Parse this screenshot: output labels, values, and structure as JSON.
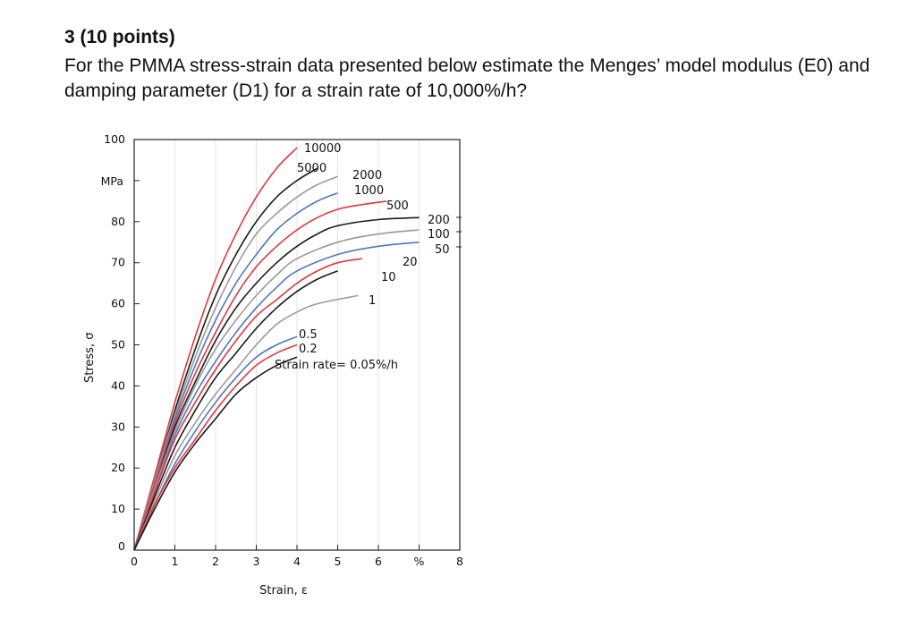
{
  "question": {
    "number": "3 (10 points)",
    "text": "For the PMMA stress-strain data presented below estimate the Menges’ model modulus (E0) and damping parameter (D1) for a strain rate of 10,000%/h?"
  },
  "chart_data": {
    "type": "line",
    "xlabel": "Strain, ε",
    "ylabel": "Stress, σ",
    "y_unit": "MPa",
    "x_unit_tick": "%",
    "xlim": [
      0,
      8
    ],
    "ylim": [
      0,
      100
    ],
    "x_ticks": [
      "0",
      "1",
      "2",
      "3",
      "4",
      "5",
      "6",
      "%",
      "8"
    ],
    "y_ticks": [
      "0",
      "10",
      "20",
      "30",
      "40",
      "50",
      "60",
      "70",
      "80",
      "100"
    ],
    "rate_prefix": "Strain rate= 0.05%/h",
    "colors": {
      "red": "#e0383c",
      "black": "#1a1a1a",
      "gray": "#9a9a9a",
      "blue": "#4a78c0"
    },
    "series": [
      {
        "name": "10000",
        "color": "red",
        "x": [
          0,
          0.5,
          1.0,
          1.5,
          2.0,
          2.5,
          3.0,
          3.5,
          4.0
        ],
        "y": [
          0,
          18,
          36,
          52,
          66,
          77,
          86,
          93,
          98
        ]
      },
      {
        "name": "5000",
        "color": "black",
        "x": [
          0,
          0.5,
          1.0,
          1.5,
          2.0,
          2.5,
          3.0,
          3.5,
          4.0,
          4.5
        ],
        "y": [
          0,
          17,
          34,
          49,
          62,
          72,
          80,
          86,
          90,
          93
        ]
      },
      {
        "name": "2000",
        "color": "gray",
        "x": [
          0,
          0.5,
          1.0,
          1.5,
          2.0,
          2.5,
          3.0,
          3.5,
          4.0,
          4.5,
          5.0
        ],
        "y": [
          0,
          17,
          33,
          47,
          59,
          69,
          77,
          82,
          86,
          89,
          91
        ]
      },
      {
        "name": "1000",
        "color": "blue",
        "x": [
          0,
          0.5,
          1.0,
          1.5,
          2.0,
          2.5,
          3.0,
          3.5,
          4.0,
          4.5,
          5.0
        ],
        "y": [
          0,
          16,
          32,
          45,
          56,
          65,
          72,
          78,
          82,
          85,
          87
        ]
      },
      {
        "name": "500",
        "color": "red",
        "x": [
          0,
          0.5,
          1.0,
          1.5,
          2.0,
          2.5,
          3.0,
          3.5,
          4.0,
          4.5,
          5.0,
          5.5,
          6.2
        ],
        "y": [
          0,
          16,
          31,
          43,
          53,
          62,
          69,
          74,
          78,
          81,
          83,
          84,
          85
        ]
      },
      {
        "name": "200",
        "color": "black",
        "x": [
          0,
          0.5,
          1.0,
          1.5,
          2.0,
          2.5,
          3.0,
          3.5,
          4.0,
          4.5,
          5.0,
          6.0,
          7.0
        ],
        "y": [
          0,
          15,
          30,
          41,
          51,
          59,
          65,
          70,
          74,
          77,
          79,
          80.5,
          81
        ]
      },
      {
        "name": "100",
        "color": "gray",
        "x": [
          0,
          0.5,
          1.0,
          1.5,
          2.0,
          2.5,
          3.0,
          3.5,
          4.0,
          5.0,
          6.0,
          7.0
        ],
        "y": [
          0,
          15,
          29,
          40,
          49,
          56,
          62,
          67,
          71,
          75,
          77,
          78
        ]
      },
      {
        "name": "50",
        "color": "blue",
        "x": [
          0,
          0.5,
          1.0,
          1.5,
          2.0,
          2.5,
          3.0,
          3.5,
          4.0,
          5.0,
          6.0,
          7.0
        ],
        "y": [
          0,
          14,
          28,
          38,
          46,
          53,
          59,
          64,
          68,
          72,
          74,
          75
        ]
      },
      {
        "name": "20",
        "color": "red",
        "x": [
          0,
          0.5,
          1.0,
          1.5,
          2.0,
          2.5,
          3.0,
          3.5,
          4.0,
          4.5,
          5.0,
          5.6
        ],
        "y": [
          0,
          14,
          27,
          36,
          44,
          51,
          57,
          61,
          65,
          68,
          70,
          71
        ]
      },
      {
        "name": "10",
        "color": "black",
        "x": [
          0,
          0.5,
          1.0,
          1.5,
          2.0,
          2.5,
          3.0,
          3.5,
          4.0,
          4.5,
          5.0
        ],
        "y": [
          0,
          13,
          25,
          34,
          42,
          48,
          54,
          59,
          63,
          66,
          68
        ]
      },
      {
        "name": "1",
        "color": "gray",
        "x": [
          0,
          0.5,
          1.0,
          1.5,
          2.0,
          2.5,
          3.0,
          3.5,
          4.0,
          4.5,
          5.5
        ],
        "y": [
          0,
          12,
          23,
          31,
          38,
          44,
          50,
          55,
          58,
          60,
          62
        ]
      },
      {
        "name": "0.5",
        "color": "blue",
        "x": [
          0,
          0.5,
          1.0,
          1.5,
          2.0,
          2.5,
          3.0,
          3.5,
          4.0
        ],
        "y": [
          0,
          11,
          21,
          29,
          36,
          42,
          47,
          50,
          52
        ]
      },
      {
        "name": "0.2",
        "color": "red",
        "x": [
          0,
          0.5,
          1.0,
          1.5,
          2.0,
          2.5,
          3.0,
          3.5,
          4.0
        ],
        "y": [
          0,
          11,
          20,
          27,
          34,
          40,
          45,
          48,
          50
        ]
      },
      {
        "name": "0.05",
        "color": "black",
        "x": [
          0,
          0.5,
          1.0,
          1.5,
          2.0,
          2.5,
          3.0,
          3.5,
          4.0
        ],
        "y": [
          0,
          10,
          19,
          26,
          32,
          38,
          42,
          45,
          47
        ]
      }
    ]
  }
}
